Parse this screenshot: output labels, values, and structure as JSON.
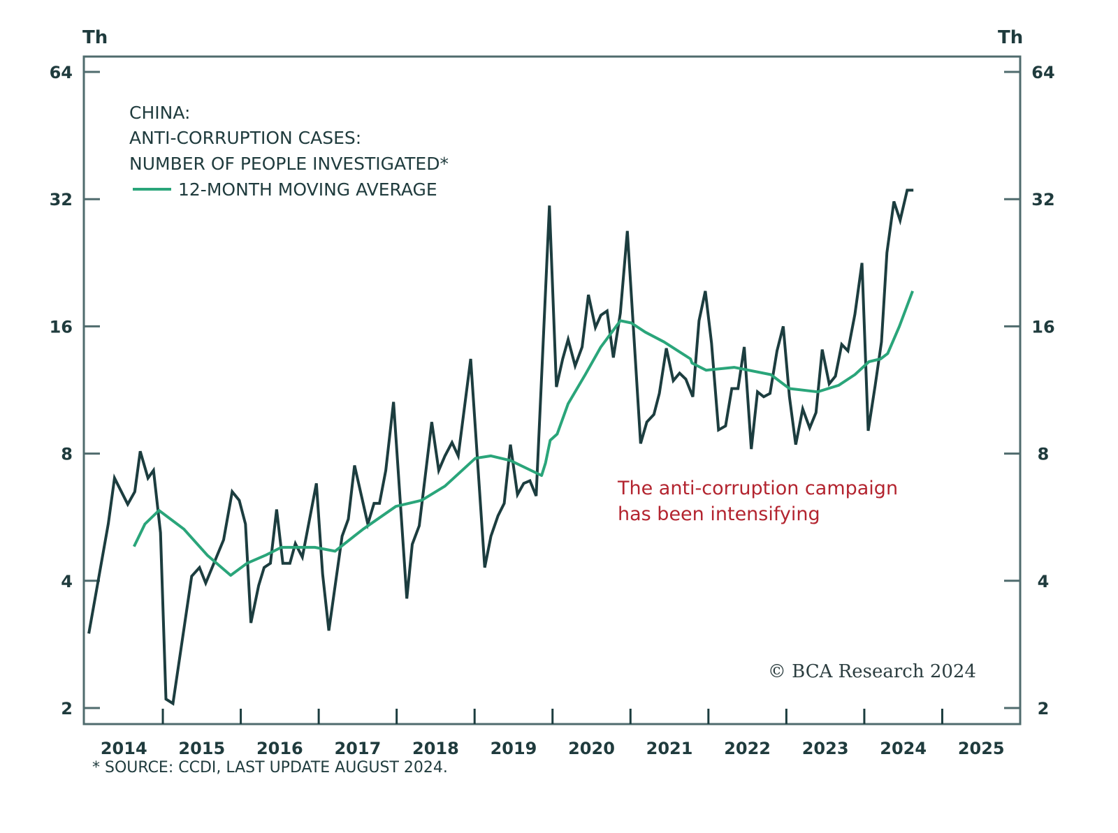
{
  "chart_data": {
    "type": "line",
    "title_lines": [
      "CHINA:",
      "ANTI-CORRUPTION CASES:",
      "NUMBER OF PEOPLE INVESTIGATED*"
    ],
    "legend": [
      {
        "name": "12-MONTH MOVING AVERAGE",
        "color": "#2aa57a"
      }
    ],
    "xlabel": "",
    "ylabel_left": "Th",
    "ylabel_right": "Th",
    "y_scale": "log2",
    "ylim": [
      2,
      64
    ],
    "y_ticks": [
      2,
      4,
      8,
      16,
      32,
      64
    ],
    "y_tick_labels": [
      "2",
      "4",
      "8",
      "16",
      "32",
      "64"
    ],
    "xlim": [
      2014.0,
      2026.0
    ],
    "x_tick_positions": [
      2015,
      2016,
      2017,
      2018,
      2019,
      2020,
      2021,
      2022,
      2023,
      2024,
      2025
    ],
    "x_year_labels": [
      "2014",
      "2015",
      "2016",
      "2017",
      "2018",
      "2019",
      "2020",
      "2021",
      "2022",
      "2023",
      "2024",
      "2025"
    ],
    "annotation": [
      "The anti-corruption campaign",
      "has been intensifying"
    ],
    "footnote": "* SOURCE: CCDI, LAST UPDATE AUGUST 2024.",
    "copyright": "© BCA Research 2024",
    "series": [
      {
        "name": "Number of people investigated",
        "color": "#1c3d3f",
        "x": [
          2014.05,
          2014.3,
          2014.38,
          2014.55,
          2014.64,
          2014.71,
          2014.81,
          2014.88,
          2014.97,
          2015.04,
          2015.13,
          2015.37,
          2015.47,
          2015.55,
          2015.78,
          2015.89,
          2015.98,
          2016.06,
          2016.13,
          2016.23,
          2016.3,
          2016.38,
          2016.46,
          2016.54,
          2016.63,
          2016.7,
          2016.79,
          2016.97,
          2017.05,
          2017.13,
          2017.3,
          2017.38,
          2017.46,
          2017.63,
          2017.71,
          2017.78,
          2017.86,
          2017.96,
          2018.13,
          2018.2,
          2018.29,
          2018.45,
          2018.54,
          2018.62,
          2018.71,
          2018.79,
          2018.95,
          2019.13,
          2019.21,
          2019.3,
          2019.38,
          2019.46,
          2019.55,
          2019.63,
          2019.71,
          2019.79,
          2019.96,
          2020.05,
          2020.13,
          2020.2,
          2020.29,
          2020.38,
          2020.46,
          2020.55,
          2020.62,
          2020.7,
          2020.78,
          2020.87,
          2020.96,
          2021.13,
          2021.21,
          2021.3,
          2021.37,
          2021.46,
          2021.55,
          2021.63,
          2021.71,
          2021.8,
          2021.88,
          2021.96,
          2022.04,
          2022.13,
          2022.22,
          2022.3,
          2022.38,
          2022.46,
          2022.55,
          2022.63,
          2022.71,
          2022.79,
          2022.88,
          2022.96,
          2023.04,
          2023.12,
          2023.21,
          2023.3,
          2023.38,
          2023.46,
          2023.55,
          2023.63,
          2023.71,
          2023.79,
          2023.88,
          2023.97,
          2024.05,
          2024.14,
          2024.22,
          2024.29,
          2024.38,
          2024.46,
          2024.55,
          2024.63
        ],
        "values": [
          3.0,
          5.46,
          7.0,
          6.07,
          6.5,
          8.1,
          7.0,
          7.3,
          5.2,
          2.1,
          2.05,
          4.1,
          4.3,
          3.95,
          5.0,
          6.5,
          6.2,
          5.45,
          3.18,
          3.9,
          4.3,
          4.4,
          5.9,
          4.4,
          4.4,
          4.9,
          4.55,
          6.8,
          4.15,
          3.05,
          5.1,
          5.6,
          7.5,
          5.45,
          6.1,
          6.1,
          7.3,
          10.6,
          3.63,
          4.88,
          5.4,
          9.5,
          7.3,
          7.9,
          8.5,
          7.9,
          13.4,
          4.3,
          5.1,
          5.7,
          6.1,
          8.4,
          6.4,
          6.8,
          6.9,
          6.35,
          30.9,
          11.5,
          13.4,
          14.9,
          12.9,
          14.3,
          19.0,
          15.9,
          17.0,
          17.4,
          13.5,
          17.2,
          26.9,
          8.45,
          9.5,
          9.9,
          11.1,
          14.2,
          11.9,
          12.4,
          12.0,
          10.9,
          16.5,
          19.4,
          14.6,
          9.1,
          9.3,
          11.4,
          11.4,
          14.3,
          8.2,
          11.2,
          10.9,
          11.1,
          14.0,
          16.0,
          10.9,
          8.4,
          10.2,
          9.2,
          10.0,
          14.1,
          11.7,
          12.2,
          14.5,
          14.0,
          17.1,
          22.6,
          9.06,
          11.6,
          14.7,
          23.9,
          31.6,
          28.5,
          33.6,
          33.6
        ]
      },
      {
        "name": "12-MONTH MOVING AVERAGE",
        "color": "#2aa57a",
        "x": [
          2014.63,
          2014.77,
          2014.95,
          2015.27,
          2015.57,
          2015.87,
          2016.08,
          2016.32,
          2016.52,
          2016.95,
          2017.21,
          2017.57,
          2017.99,
          2018.32,
          2018.62,
          2019.01,
          2019.21,
          2019.46,
          2019.86,
          2019.91,
          2019.97,
          2020.06,
          2020.2,
          2020.42,
          2020.62,
          2020.87,
          2021.01,
          2021.19,
          2021.43,
          2021.77,
          2021.79,
          2021.97,
          2022.33,
          2022.8,
          2023.04,
          2023.4,
          2023.67,
          2023.88,
          2024.06,
          2024.21,
          2024.3,
          2024.45,
          2024.62
        ],
        "values": [
          4.82,
          5.45,
          5.87,
          5.3,
          4.6,
          4.12,
          4.4,
          4.6,
          4.8,
          4.8,
          4.7,
          5.3,
          6.0,
          6.2,
          6.7,
          7.8,
          7.9,
          7.7,
          7.1,
          7.6,
          8.6,
          8.9,
          10.5,
          12.3,
          14.3,
          16.5,
          16.3,
          15.5,
          14.7,
          13.4,
          13.1,
          12.6,
          12.8,
          12.3,
          11.4,
          11.2,
          11.6,
          12.3,
          13.2,
          13.4,
          13.8,
          16.0,
          19.4
        ]
      }
    ]
  }
}
